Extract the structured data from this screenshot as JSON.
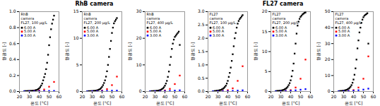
{
  "chart_data": [
    {
      "type": "scatter",
      "xlabel": "온도 [°C]",
      "ylabel": "형광도 [-]",
      "xlim": [
        20,
        60
      ],
      "xticks": [
        20,
        30,
        40,
        50,
        60
      ],
      "ylim": [
        0,
        1.0
      ],
      "yticks": [
        {
          "value": 0,
          "label": "0.0"
        },
        0.2,
        0.4,
        0.6,
        0.8,
        {
          "value": 1.0,
          "label": "1.0"
        }
      ],
      "legend": "upper left",
      "legend_title": "FL27, 100 μg/L",
      "annotations": [
        "RhB\ncamera"
      ],
      "series": [
        {
          "name": "6.00 A",
          "color": "black",
          "marker": "square",
          "x": [
            25,
            26,
            27,
            28,
            29,
            30,
            31,
            32,
            33,
            34,
            35,
            36,
            37,
            38,
            39,
            40,
            41,
            42,
            43,
            44,
            45,
            46,
            47,
            48,
            49,
            50,
            51,
            52,
            53,
            54,
            55
          ],
          "values": [
            0.005,
            0.005,
            0.005,
            0.006,
            0.006,
            0.007,
            0.007,
            0.008,
            0.009,
            0.01,
            0.012,
            0.015,
            0.018,
            0.022,
            0.03,
            0.04,
            0.055,
            0.075,
            0.1,
            0.14,
            0.18,
            0.22,
            0.28,
            0.36,
            0.46,
            0.58,
            0.68,
            0.78,
            0.85,
            0.9,
            0.95
          ]
        },
        {
          "name": "5.00 A",
          "color": "red",
          "marker": "square",
          "x": [
            30,
            35,
            40,
            45,
            50,
            55
          ],
          "values": [
            0.004,
            0.006,
            0.012,
            0.025,
            0.06,
            0.12
          ]
        },
        {
          "name": "3.00 A",
          "color": "blue",
          "marker": "square",
          "x": [
            25,
            30,
            35,
            40,
            45,
            50,
            55
          ],
          "values": [
            0.002,
            0.003,
            0.004,
            0.005,
            0.006,
            0.007,
            0.008
          ]
        }
      ]
    },
    {
      "type": "scatter",
      "title": "RhB camera",
      "xlabel": "온도 [°C]",
      "ylabel": "형광도 [-]",
      "xlim": [
        20,
        60
      ],
      "xticks": [
        20,
        30,
        40,
        50,
        60
      ],
      "ylim": [
        0,
        15
      ],
      "yticks": [
        0,
        5,
        10,
        15
      ],
      "legend": "upper left",
      "legend_title": "FL27, 200 μg/L",
      "annotations": [
        "RhB\ncamera"
      ],
      "series": [
        {
          "name": "6.00 A",
          "color": "black",
          "marker": "square",
          "x": [
            25,
            26,
            27,
            28,
            29,
            30,
            31,
            32,
            33,
            34,
            35,
            36,
            37,
            38,
            39,
            40,
            41,
            42,
            43,
            44,
            45,
            46,
            47,
            48,
            49,
            50,
            51,
            52,
            53,
            54,
            55
          ],
          "values": [
            0.05,
            0.06,
            0.07,
            0.07,
            0.08,
            0.09,
            0.1,
            0.12,
            0.14,
            0.17,
            0.22,
            0.28,
            0.36,
            0.48,
            0.65,
            0.88,
            1.2,
            1.6,
            2.1,
            2.8,
            3.8,
            5.0,
            6.5,
            8.0,
            9.5,
            11.0,
            12.0,
            12.8,
            13.2,
            13.5,
            13.8
          ]
        },
        {
          "name": "5.00 A",
          "color": "red",
          "marker": "square",
          "x": [
            30,
            35,
            40,
            45,
            50,
            55
          ],
          "values": [
            0.04,
            0.07,
            0.18,
            0.45,
            1.2,
            2.8
          ]
        },
        {
          "name": "3.00 A",
          "color": "blue",
          "marker": "square",
          "x": [
            25,
            30,
            35,
            40,
            45,
            50,
            55
          ],
          "values": [
            0.02,
            0.04,
            0.06,
            0.09,
            0.12,
            0.15,
            0.18
          ]
        }
      ]
    },
    {
      "type": "scatter",
      "xlabel": "온도 [°C]",
      "ylabel": "형광도 [-]",
      "xlim": [
        20,
        60
      ],
      "xticks": [
        20,
        30,
        40,
        50,
        60
      ],
      "ylim": [
        0,
        30
      ],
      "yticks": [
        0,
        10,
        20,
        30
      ],
      "legend": "upper left",
      "legend_title": "FL27, 400 μg/L",
      "annotations": [
        "RhB\ncamera"
      ],
      "series": [
        {
          "name": "6.00 A",
          "color": "black",
          "marker": "square",
          "x": [
            25,
            26,
            27,
            28,
            29,
            30,
            31,
            32,
            33,
            34,
            35,
            36,
            37,
            38,
            39,
            40,
            41,
            42,
            43,
            44,
            45,
            46,
            47,
            48,
            49,
            50,
            51,
            52,
            53,
            54,
            55
          ],
          "values": [
            0.1,
            0.12,
            0.14,
            0.15,
            0.17,
            0.19,
            0.22,
            0.26,
            0.32,
            0.4,
            0.52,
            0.68,
            0.9,
            1.2,
            1.6,
            2.2,
            3.0,
            4.0,
            5.5,
            7.5,
            10.0,
            13.0,
            16.0,
            18.0,
            19.5,
            20.5,
            21.0,
            21.5,
            22.0,
            22.5,
            17.5
          ]
        },
        {
          "name": "5.00 A",
          "color": "red",
          "marker": "square",
          "x": [
            30,
            35,
            40,
            45,
            50,
            55
          ],
          "values": [
            0.08,
            0.15,
            0.4,
            1.0,
            2.8,
            6.0
          ]
        },
        {
          "name": "3.00 A",
          "color": "blue",
          "marker": "square",
          "x": [
            25,
            30,
            35,
            40,
            45,
            50,
            55
          ],
          "values": [
            0.05,
            0.08,
            0.12,
            0.18,
            0.25,
            0.35,
            0.45
          ]
        }
      ]
    },
    {
      "type": "scatter",
      "xlabel": "온도 [°C]",
      "ylabel": "형광도 [-]",
      "xlim": [
        20,
        60
      ],
      "xticks": [
        20,
        30,
        40,
        50,
        60
      ],
      "ylim": [
        0,
        3.0
      ],
      "yticks": [
        {
          "value": 0,
          "label": "0.0"
        },
        0.5,
        {
          "value": 1.0,
          "label": "1.0"
        },
        1.5,
        {
          "value": 2.0,
          "label": "2.0"
        },
        2.5,
        {
          "value": 3.0,
          "label": "3.0"
        }
      ],
      "legend": "upper left",
      "legend_title": "FL27, 100 μg/L",
      "annotations": [
        "FL27\ncamera"
      ],
      "series": [
        {
          "name": "6.00 A",
          "color": "black",
          "marker": "square",
          "x": [
            25,
            26,
            27,
            28,
            29,
            30,
            31,
            32,
            33,
            34,
            35,
            36,
            37,
            38,
            39,
            40,
            41,
            42,
            43,
            44,
            45,
            46,
            47,
            48,
            49,
            50,
            51,
            52,
            53,
            54,
            55
          ],
          "values": [
            0.01,
            0.01,
            0.02,
            0.02,
            0.03,
            0.03,
            0.04,
            0.05,
            0.06,
            0.08,
            0.1,
            0.13,
            0.17,
            0.22,
            0.3,
            0.4,
            0.55,
            0.7,
            0.9,
            1.15,
            1.4,
            1.7,
            2.0,
            2.2,
            2.4,
            2.55,
            2.65,
            2.72,
            2.77,
            2.82,
            2.87
          ]
        },
        {
          "name": "5.00 A",
          "color": "red",
          "marker": "square",
          "x": [
            30,
            35,
            40,
            45,
            50,
            55
          ],
          "values": [
            0.01,
            0.02,
            0.05,
            0.12,
            0.4,
            0.95
          ]
        },
        {
          "name": "3.00 A",
          "color": "blue",
          "marker": "square",
          "x": [
            25,
            30,
            35,
            40,
            45,
            50,
            55
          ],
          "values": [
            0.005,
            0.008,
            0.012,
            0.018,
            0.025,
            0.035,
            0.045
          ]
        }
      ]
    },
    {
      "type": "scatter",
      "title": "FL27 camera",
      "xlabel": "온도 [°C]",
      "ylabel": "형광도 [-]",
      "xlim": [
        20,
        60
      ],
      "xticks": [
        20,
        30,
        40,
        50,
        60
      ],
      "ylim": [
        0,
        20
      ],
      "yticks": [
        0,
        5,
        10,
        15,
        20
      ],
      "legend": "upper left",
      "legend_title": "FL27, 200 μg/L",
      "annotations": [
        "FL27\ncamera"
      ],
      "series": [
        {
          "name": "6.00 A",
          "color": "black",
          "marker": "square",
          "x": [
            25,
            26,
            27,
            28,
            29,
            30,
            31,
            32,
            33,
            34,
            35,
            36,
            37,
            38,
            39,
            40,
            41,
            42,
            43,
            44,
            45,
            46,
            47,
            48,
            49,
            50,
            51,
            52,
            53,
            54,
            55
          ],
          "values": [
            0.1,
            0.12,
            0.14,
            0.16,
            0.18,
            0.22,
            0.27,
            0.34,
            0.43,
            0.55,
            0.7,
            0.9,
            1.2,
            1.6,
            2.1,
            2.8,
            3.8,
            5.2,
            7.0,
            9.5,
            12.0,
            14.5,
            16.5,
            17.5,
            18.2,
            18.7,
            19.0,
            19.3,
            19.5,
            19.7,
            19.8
          ]
        },
        {
          "name": "5.00 A",
          "color": "red",
          "marker": "square",
          "x": [
            30,
            35,
            40,
            45,
            50,
            55
          ],
          "values": [
            0.06,
            0.12,
            0.35,
            1.0,
            3.2,
            8.0
          ]
        },
        {
          "name": "3.00 A",
          "color": "blue",
          "marker": "square",
          "x": [
            25,
            30,
            35,
            40,
            45,
            50,
            55
          ],
          "values": [
            0.04,
            0.07,
            0.12,
            0.2,
            0.3,
            0.45,
            0.6
          ]
        }
      ]
    },
    {
      "type": "scatter",
      "xlabel": "온도 [°C]",
      "ylabel": "형광도 [-]",
      "xlim": [
        20,
        60
      ],
      "xticks": [
        20,
        30,
        40,
        50,
        60
      ],
      "ylim": [
        0,
        50
      ],
      "yticks": [
        0,
        10,
        20,
        30,
        40,
        50
      ],
      "legend": "upper left",
      "legend_title": "FL27, 400 μg/L",
      "annotations": [
        "FL27\ncamera"
      ],
      "series": [
        {
          "name": "6.00 A",
          "color": "black",
          "marker": "square",
          "x": [
            25,
            26,
            27,
            28,
            29,
            30,
            31,
            32,
            33,
            34,
            35,
            36,
            37,
            38,
            39,
            40,
            41,
            42,
            43,
            44,
            45,
            46,
            47,
            48,
            49,
            50,
            51,
            52,
            53,
            54,
            55
          ],
          "values": [
            0.2,
            0.25,
            0.3,
            0.35,
            0.42,
            0.52,
            0.65,
            0.82,
            1.05,
            1.35,
            1.75,
            2.25,
            3.0,
            4.0,
            5.5,
            7.5,
            10.5,
            14.5,
            20.0,
            27.0,
            32.0,
            37.0,
            40.0,
            43.0,
            45.0,
            46.5,
            47.5,
            48.0,
            48.5,
            49.0,
            30.0
          ]
        },
        {
          "name": "5.00 A",
          "color": "red",
          "marker": "square",
          "x": [
            30,
            35,
            40,
            45,
            50,
            55
          ],
          "values": [
            0.15,
            0.3,
            0.9,
            2.5,
            8.0,
            22.0
          ]
        },
        {
          "name": "3.00 A",
          "color": "blue",
          "marker": "square",
          "x": [
            25,
            30,
            35,
            40,
            45,
            50,
            55
          ],
          "values": [
            0.1,
            0.18,
            0.3,
            0.5,
            0.8,
            1.2,
            1.8
          ]
        }
      ]
    }
  ]
}
